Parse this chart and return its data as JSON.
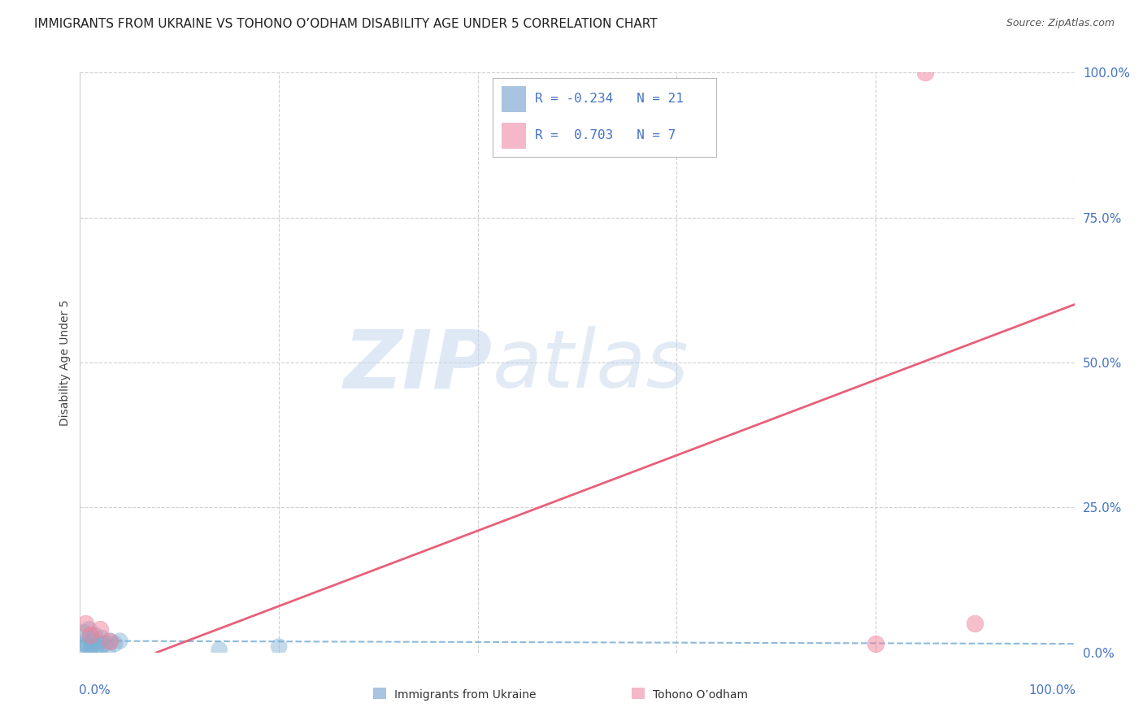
{
  "title": "IMMIGRANTS FROM UKRAINE VS TOHONO O’ODHAM DISABILITY AGE UNDER 5 CORRELATION CHART",
  "source": "Source: ZipAtlas.com",
  "ylabel": "Disability Age Under 5",
  "y_tick_positions": [
    0,
    25,
    50,
    75,
    100
  ],
  "x_tick_positions": [
    0,
    20,
    40,
    60,
    80,
    100
  ],
  "xlim": [
    0,
    100
  ],
  "ylim": [
    0,
    100
  ],
  "ukraine_R": -0.234,
  "ukraine_N": 21,
  "tohono_R": 0.703,
  "tohono_N": 7,
  "ukraine_legend_color": "#a8c4e0",
  "ukraine_scatter_color": "#7bafd4",
  "tohono_legend_color": "#f4b8c8",
  "tohono_scatter_color": "#f08098",
  "ukraine_line_color": "#7bafd4",
  "tohono_line_color": "#e8607a",
  "ukraine_scatter_x": [
    0.3,
    0.5,
    0.7,
    0.8,
    1.0,
    1.2,
    1.5,
    1.7,
    1.8,
    2.0,
    2.2,
    2.5,
    2.8,
    3.0,
    3.5,
    4.0,
    0.4,
    0.9,
    1.3,
    14.0,
    20.0
  ],
  "ukraine_scatter_y": [
    0.8,
    1.5,
    1.2,
    2.5,
    0.5,
    1.0,
    3.0,
    1.0,
    1.8,
    0.5,
    2.5,
    1.5,
    0.5,
    2.0,
    1.5,
    2.0,
    3.5,
    4.0,
    2.0,
    0.5,
    1.0
  ],
  "tohono_scatter_x": [
    0.5,
    1.0,
    2.0,
    3.0,
    80.0,
    85.0,
    90.0
  ],
  "tohono_scatter_y": [
    5.0,
    3.0,
    4.0,
    2.0,
    1.5,
    100.0,
    5.0
  ],
  "ukraine_line_intercept": 2.0,
  "ukraine_line_slope": -0.005,
  "tohono_line_slope": 0.65,
  "tohono_line_intercept": -5.0,
  "watermark_zip": "ZIP",
  "watermark_atlas": "atlas",
  "background_color": "#ffffff",
  "grid_color": "#d0d0d0",
  "right_axis_color": "#4472c4",
  "title_fontsize": 11,
  "source_fontsize": 9,
  "axis_label_fontsize": 10,
  "tick_fontsize": 11,
  "legend_fontsize": 11.5
}
